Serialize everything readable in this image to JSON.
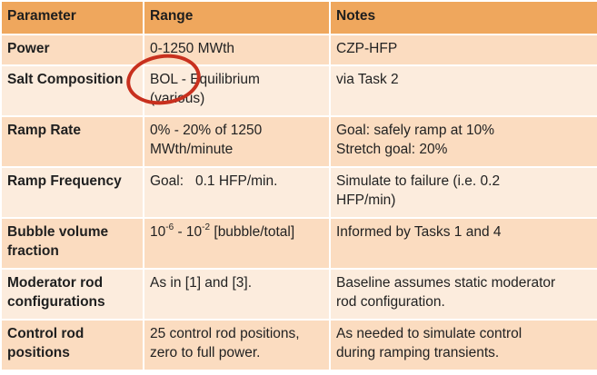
{
  "table": {
    "headers": [
      "Parameter",
      "Range",
      "Notes"
    ],
    "rows": [
      {
        "parameter": [
          "Power"
        ],
        "range": [
          "0-1250 MWth"
        ],
        "notes": [
          "CZP-HFP"
        ]
      },
      {
        "parameter": [
          "Salt Composition"
        ],
        "range": [
          "BOL - Equilibrium",
          "(various)"
        ],
        "notes": [
          "via Task 2"
        ]
      },
      {
        "parameter": [
          "Ramp Rate"
        ],
        "range": [
          "0% - 20% of 1250",
          "MWth/minute"
        ],
        "notes": [
          "Goal: safely ramp at 10%",
          "Stretch goal: 20%"
        ]
      },
      {
        "parameter": [
          "Ramp Frequency"
        ],
        "range": [
          "Goal:   0.1 HFP/min."
        ],
        "notes": [
          "Simulate to failure (i.e. 0.2",
          "HFP/min)"
        ]
      },
      {
        "parameter": [
          "Bubble volume",
          "fraction"
        ],
        "range_bubble": {
          "base1": "10",
          "exp1": "-6",
          "sep": " - 10",
          "exp2": "-2",
          "tail": " [bubble/total]"
        },
        "notes": [
          "Informed by Tasks 1 and 4"
        ]
      },
      {
        "parameter": [
          "Moderator rod",
          "configurations"
        ],
        "range": [
          "As in [1] and [3]."
        ],
        "notes": [
          "Baseline assumes static moderator",
          "rod configuration."
        ]
      },
      {
        "parameter": [
          "Control rod",
          "positions"
        ],
        "range": [
          "25 control rod positions,",
          "zero to full power."
        ],
        "notes": [
          "As needed to simulate control",
          "during ramping transients."
        ]
      }
    ]
  },
  "colors": {
    "header_bg": "#efa75d",
    "row_odd_bg": "#fbdcc0",
    "row_even_bg": "#fcecdd",
    "highlight_ring": "#c8301e"
  }
}
